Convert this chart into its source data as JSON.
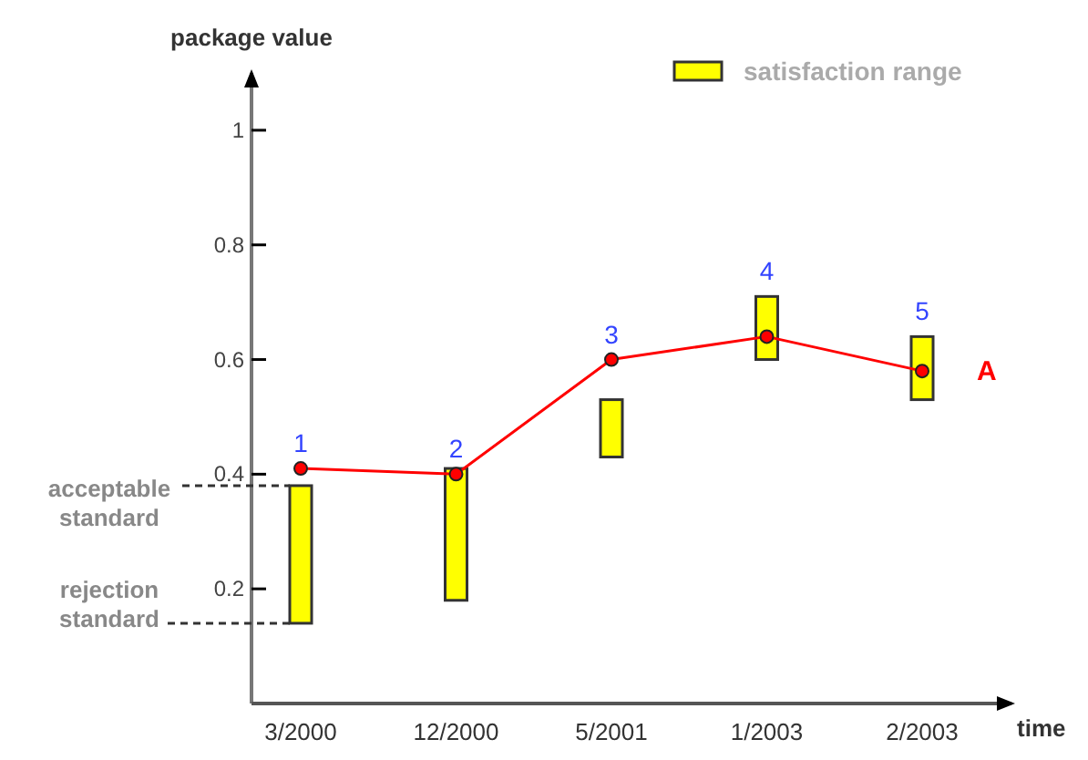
{
  "chart_data": {
    "type": "bar",
    "xlabel": "time",
    "ylabel": "package value",
    "categories": [
      "3/2000",
      "12/2000",
      "5/2001",
      "1/2003",
      "2/2003"
    ],
    "series": [
      {
        "name": "satisfaction range",
        "color": "#ffff00",
        "base": [
          0.14,
          0.18,
          0.43,
          0.6,
          0.53
        ],
        "values": [
          0.24,
          0.23,
          0.1,
          0.11,
          0.11
        ]
      },
      {
        "name": "A",
        "type": "line",
        "color": "#ff0000",
        "values": [
          0.41,
          0.4,
          0.6,
          0.64,
          0.58
        ]
      }
    ],
    "ylim": [
      0,
      1.1
    ],
    "yticks": [
      0.2,
      0.4,
      0.6,
      0.8,
      1
    ],
    "ref_lines": [
      {
        "axis": "y",
        "value": 0.38,
        "label": "acceptable standard",
        "line_style": "dashed"
      },
      {
        "axis": "y",
        "value": 0.14,
        "label": "rejection standard",
        "line_style": "dashed"
      }
    ],
    "annotations": [
      {
        "text": "1",
        "x": "3/2000",
        "y": 0.41
      },
      {
        "text": "2",
        "x": "12/2000",
        "y": 0.4
      },
      {
        "text": "3",
        "x": "5/2001",
        "y": 0.6
      },
      {
        "text": "4",
        "x": "1/2003",
        "y": 0.71
      },
      {
        "text": "5",
        "x": "2/2003",
        "y": 0.64
      }
    ],
    "legend": "top right",
    "marker": "circle",
    "grid": false
  }
}
